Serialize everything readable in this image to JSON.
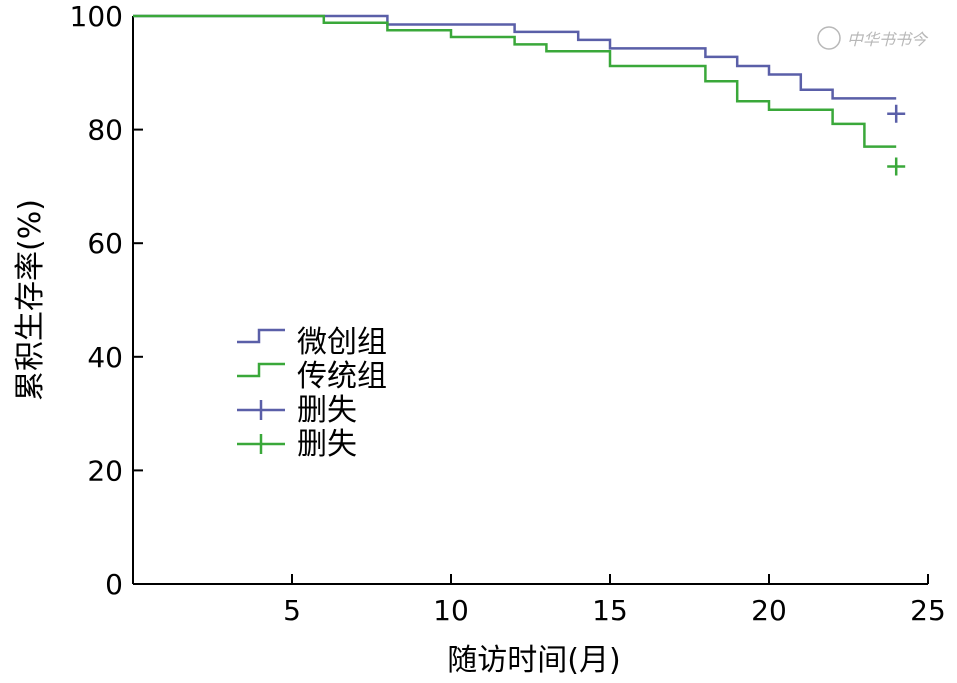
{
  "watermark": "中华书书今",
  "chart_data": {
    "type": "line",
    "step": true,
    "title": "",
    "xlabel": "随访时间(月)",
    "ylabel": "累积生存率(%)",
    "xlim": [
      0,
      25
    ],
    "ylim": [
      0,
      100
    ],
    "xticks": [
      5,
      10,
      15,
      20,
      25
    ],
    "yticks": [
      0,
      20,
      40,
      60,
      80,
      100
    ],
    "grid": false,
    "legend_position": "center-left",
    "series": [
      {
        "name": "微创组",
        "color": "#5a5fa8",
        "x": [
          0,
          8,
          8,
          12,
          12,
          14,
          14,
          15,
          15,
          18,
          18,
          19,
          19,
          20,
          20,
          21,
          21,
          22,
          22,
          24
        ],
        "y": [
          100,
          100,
          98.5,
          98.5,
          97.2,
          97.2,
          95.8,
          95.8,
          94.3,
          94.3,
          92.8,
          92.8,
          91.2,
          91.2,
          89.7,
          89.7,
          87.0,
          87.0,
          85.5,
          85.5
        ],
        "censor_label": "删失",
        "censor": [
          {
            "x": 24,
            "y": 82.8
          }
        ]
      },
      {
        "name": "传统组",
        "color": "#3aa83a",
        "x": [
          0,
          6,
          6,
          8,
          8,
          10,
          10,
          12,
          12,
          13,
          13,
          15,
          15,
          18,
          18,
          19,
          19,
          20,
          20,
          22,
          22,
          23,
          23,
          24
        ],
        "y": [
          100,
          100,
          98.8,
          98.8,
          97.5,
          97.5,
          96.3,
          96.3,
          95.0,
          95.0,
          93.8,
          93.8,
          91.2,
          91.2,
          88.5,
          88.5,
          85.0,
          85.0,
          83.5,
          83.5,
          81.0,
          81.0,
          77.0,
          77.0
        ],
        "censor_label": "删失",
        "censor": [
          {
            "x": 24,
            "y": 73.5
          }
        ]
      }
    ]
  }
}
